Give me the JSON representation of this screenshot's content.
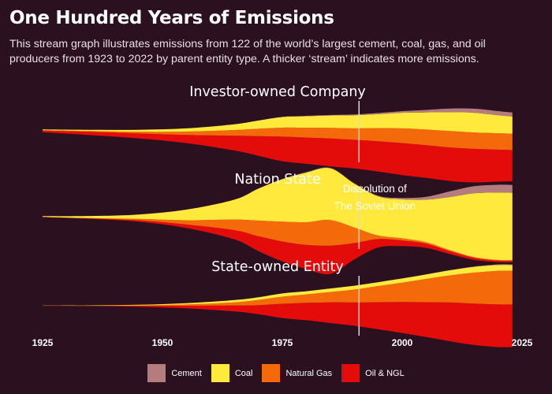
{
  "chart_data": {
    "type": "area",
    "subtype": "streamgraph",
    "title": "One Hundred Years of Emissions",
    "subtitle_line1": "This stream graph illustrates emissions from 122 of the world’s largest cement, coal, gas, and oil",
    "subtitle_line2": "producers from 1923 to 2022 by parent entity type. A thicker ‘stream’ indicates more emissions.",
    "xlim": [
      1925,
      2025
    ],
    "x_ticks": [
      "1925",
      "1950",
      "1975",
      "2000",
      "2025"
    ],
    "annotation": {
      "x": 1991,
      "text_line1": "Dissolution of",
      "text_line2": "The Soviet Union"
    },
    "legend": [
      {
        "name": "Cement",
        "color": "#b47c7c"
      },
      {
        "name": "Coal",
        "color": "#ffe93d"
      },
      {
        "name": "Natural Gas",
        "color": "#f46a0a"
      },
      {
        "name": "Oil & NGL",
        "color": "#e40b0b"
      }
    ],
    "x": [
      1925,
      1935,
      1945,
      1955,
      1965,
      1970,
      1975,
      1980,
      1985,
      1990,
      1995,
      2000,
      2005,
      2010,
      2015,
      2020,
      2023
    ],
    "panels": [
      {
        "title": "Investor-owned Company",
        "series": [
          {
            "name": "Cement",
            "values": [
              0,
              0,
              0,
              0,
              0,
              0,
              0.03,
              0.05,
              0.07,
              0.1,
              0.15,
              0.2,
              0.3,
              0.45,
              0.5,
              0.5,
              0.5
            ]
          },
          {
            "name": "Coal",
            "values": [
              0.1,
              0.15,
              0.25,
              0.4,
              0.7,
              1.0,
              1.3,
              1.4,
              1.5,
              1.6,
              1.7,
              1.9,
              2.1,
              2.3,
              2.4,
              2.2,
              2.1
            ]
          },
          {
            "name": "Natural Gas",
            "values": [
              0.05,
              0.1,
              0.2,
              0.4,
              0.7,
              0.9,
              1.1,
              1.2,
              1.3,
              1.4,
              1.6,
              1.8,
              1.9,
              2.0,
              2.0,
              2.0,
              2.0
            ]
          },
          {
            "name": "Oil & NGL",
            "values": [
              0.2,
              0.4,
              0.6,
              1.0,
              1.8,
              2.4,
              3.0,
              3.2,
              3.4,
              3.5,
              3.7,
              3.9,
              4.0,
              4.1,
              4.1,
              3.9,
              3.8
            ]
          }
        ]
      },
      {
        "title": "Nation State",
        "series": [
          {
            "name": "Cement",
            "values": [
              0,
              0,
              0,
              0,
              0,
              0,
              0,
              0.05,
              0.05,
              0.05,
              0.1,
              0.2,
              0.4,
              0.8,
              1.0,
              1.1,
              1.1
            ]
          },
          {
            "name": "Coal",
            "values": [
              0.1,
              0.3,
              0.6,
              1.5,
              2.8,
              4.5,
              6.0,
              7.0,
              7.3,
              6.2,
              5.5,
              5.5,
              6.0,
              7.5,
              9.0,
              9.5,
              9.5
            ]
          },
          {
            "name": "Natural Gas",
            "values": [
              0.03,
              0.05,
              0.2,
              0.6,
              1.5,
              2.2,
              2.8,
              3.2,
              3.6,
              2.2,
              0.5,
              0.3,
              0.2,
              0.15,
              0.1,
              0.1,
              0.1
            ]
          },
          {
            "name": "Oil & NGL",
            "values": [
              0.03,
              0.05,
              0.2,
              0.5,
              1.3,
              2.1,
              2.8,
              3.4,
              4.0,
              2.3,
              1.2,
              0.8,
              0.6,
              0.4,
              0.3,
              0.2,
              0.2
            ]
          }
        ]
      },
      {
        "title": "State-owned Entity",
        "series": [
          {
            "name": "Cement",
            "values": [
              0,
              0,
              0,
              0,
              0,
              0,
              0,
              0,
              0,
              0,
              0,
              0,
              0,
              0,
              0.05,
              0.1,
              0.1
            ]
          },
          {
            "name": "Coal",
            "values": [
              0.03,
              0.05,
              0.1,
              0.2,
              0.35,
              0.4,
              0.5,
              0.5,
              0.55,
              0.6,
              0.6,
              0.65,
              0.7,
              0.8,
              0.9,
              0.9,
              0.9
            ]
          },
          {
            "name": "Natural Gas",
            "values": [
              0,
              0.02,
              0.05,
              0.2,
              0.5,
              0.8,
              1.1,
              1.3,
              1.6,
              2.0,
              2.5,
              3.0,
              3.6,
              4.2,
              4.8,
              5.2,
              5.2
            ]
          },
          {
            "name": "Oil & NGL",
            "values": [
              0.02,
              0.05,
              0.15,
              0.4,
              0.9,
              1.4,
              2.2,
              2.7,
              3.2,
              3.6,
              4.2,
              4.8,
              5.4,
              6.0,
              6.4,
              6.6,
              6.6
            ]
          }
        ]
      }
    ]
  }
}
